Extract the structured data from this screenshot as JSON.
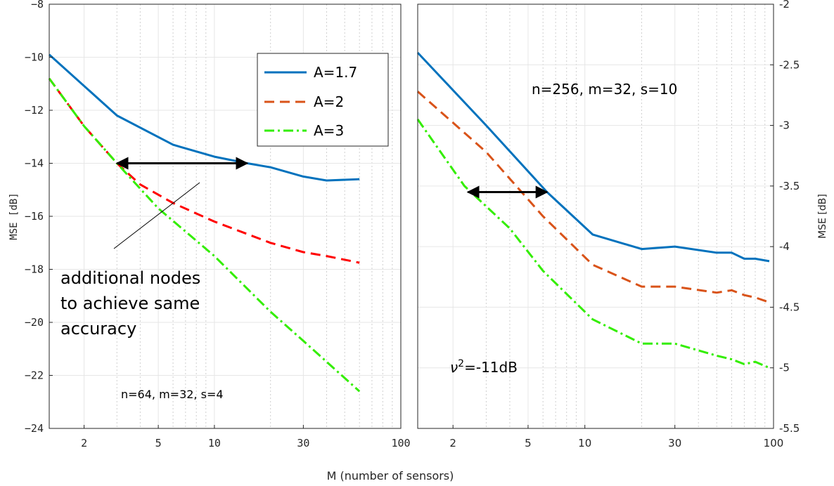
{
  "figure": {
    "xlabel": "M (number of sensors)"
  },
  "chart_data": [
    {
      "type": "line",
      "xscale": "log",
      "xlim": [
        1.3,
        100
      ],
      "ylim": [
        -24,
        -8
      ],
      "xticks": [
        2,
        5,
        10,
        30,
        100
      ],
      "xtick_labels": [
        "2",
        "5",
        "10",
        "30",
        "100"
      ],
      "yticks": [
        -24,
        -22,
        -20,
        -18,
        -16,
        -14,
        -12,
        -10,
        -8
      ],
      "ytick_labels": [
        "−24",
        "−22",
        "−20",
        "−18",
        "−16",
        "−14",
        "−12",
        "−10",
        "−8"
      ],
      "ylabel": "MSE  [dB]",
      "grid": true,
      "legend": {
        "position": "top-right",
        "entries": [
          "A=1.7",
          "A=2",
          "A=3"
        ]
      },
      "series": [
        {
          "name": "A=1.7",
          "color": "#0072BD",
          "style": "solid",
          "x": [
            1.3,
            3,
            6,
            10,
            15,
            20,
            30,
            40,
            60
          ],
          "y": [
            -9.9,
            -12.2,
            -13.3,
            -13.75,
            -14.0,
            -14.15,
            -14.5,
            -14.65,
            -14.6
          ]
        },
        {
          "name": "A=2",
          "color": "#FF0000",
          "style": "dashed",
          "x": [
            1.3,
            2,
            3,
            4,
            6,
            10,
            20,
            30,
            40,
            60
          ],
          "y": [
            -10.8,
            -12.6,
            -14.0,
            -14.8,
            -15.5,
            -16.2,
            -17.0,
            -17.35,
            -17.5,
            -17.75
          ]
        },
        {
          "name": "A=3",
          "color": "#33EE00",
          "style": "dashdot",
          "x": [
            1.3,
            2,
            3,
            5,
            10,
            20,
            30,
            60
          ],
          "y": [
            -10.8,
            -12.6,
            -14.0,
            -15.7,
            -17.5,
            -19.6,
            -20.7,
            -22.6
          ]
        }
      ],
      "annotations": {
        "text_lines": [
          "additional nodes",
          "to achieve same",
          "accuracy"
        ],
        "params": "n=64, m=32, s=4"
      },
      "arrow": {
        "x1": 3,
        "x2": 15,
        "y": -14.0
      }
    },
    {
      "type": "line",
      "xscale": "log",
      "xlim": [
        1.3,
        100
      ],
      "ylim": [
        -5.5,
        -2
      ],
      "xticks": [
        2,
        5,
        10,
        30,
        100
      ],
      "xtick_labels": [
        "2",
        "5",
        "10",
        "30",
        "100"
      ],
      "yticks": [
        -5.5,
        -5,
        -4.5,
        -4,
        -3.5,
        -3,
        -2.5,
        -2
      ],
      "ytick_labels": [
        "-5.5",
        "-5",
        "-4.5",
        "-4",
        "-3.5",
        "-3",
        "-2.5",
        "-2"
      ],
      "ylabel": "MSE [dB]",
      "grid": true,
      "series": [
        {
          "name": "A=1.7",
          "color": "#0072BD",
          "style": "solid",
          "x": [
            1.3,
            3,
            6.3,
            11,
            20,
            30,
            50,
            60,
            70,
            80,
            95
          ],
          "y": [
            -2.4,
            -3.0,
            -3.55,
            -3.9,
            -4.02,
            -4.0,
            -4.05,
            -4.05,
            -4.1,
            -4.1,
            -4.12
          ]
        },
        {
          "name": "A=2",
          "color": "#D95319",
          "style": "dashed",
          "x": [
            1.3,
            3,
            6,
            11,
            20,
            30,
            50,
            60,
            70,
            80,
            95
          ],
          "y": [
            -2.72,
            -3.22,
            -3.75,
            -4.15,
            -4.33,
            -4.33,
            -4.38,
            -4.36,
            -4.4,
            -4.42,
            -4.46
          ]
        },
        {
          "name": "A=3",
          "color": "#33EE00",
          "style": "dashdot",
          "x": [
            1.3,
            2.3,
            4,
            6,
            11,
            20,
            30,
            50,
            60,
            70,
            80,
            95
          ],
          "y": [
            -2.95,
            -3.5,
            -3.85,
            -4.2,
            -4.6,
            -4.8,
            -4.8,
            -4.9,
            -4.93,
            -4.97,
            -4.95,
            -5.0
          ]
        }
      ],
      "annotations": {
        "params": "n=256, m=32, s=10",
        "noise_symbol": "ν",
        "noise_exp": "2",
        "noise_value": "=-11dB"
      },
      "arrow": {
        "x1": 2.4,
        "x2": 6.3,
        "y": -3.55
      }
    }
  ]
}
